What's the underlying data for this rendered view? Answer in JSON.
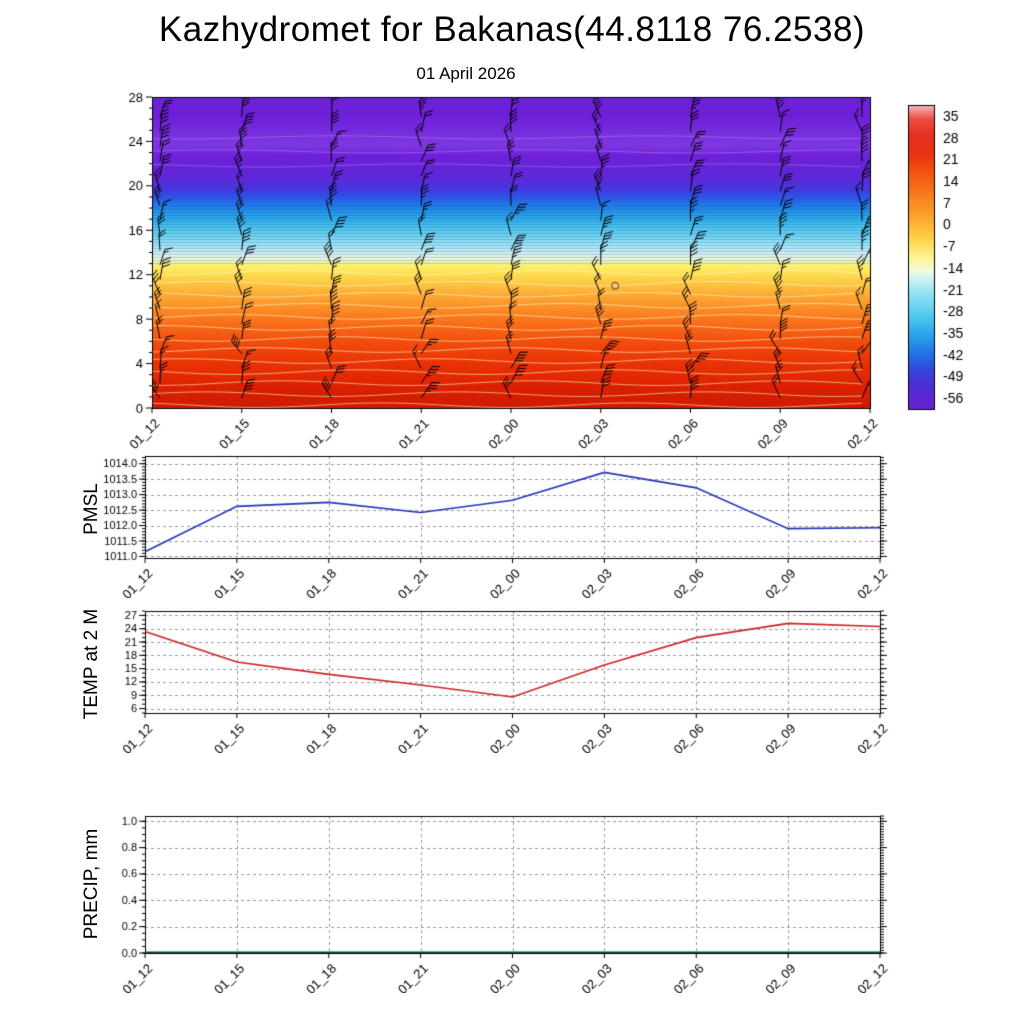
{
  "title": "Kazhydromet for Bakanas(44.8118 76.2538)",
  "subtitle": "01 April 2026",
  "x_ticklabels": [
    "01_12",
    "01_15",
    "01_18",
    "01_21",
    "02_00",
    "02_03",
    "02_06",
    "02_09",
    "02_12"
  ],
  "chart_data": [
    {
      "type": "heatmap",
      "title": "01 April 2026",
      "description": "Vertical temperature cross-section (height vs time) with wind barbs",
      "ylim": [
        0,
        28
      ],
      "yticks": [
        0,
        4,
        8,
        12,
        16,
        20,
        24,
        28
      ],
      "x_ticklabels": [
        "01_12",
        "01_15",
        "01_18",
        "01_21",
        "02_00",
        "02_03",
        "02_06",
        "02_09",
        "02_12"
      ],
      "colorbar_ticks": [
        35,
        28,
        21,
        14,
        7,
        0,
        -7,
        -14,
        -21,
        -28,
        -35,
        -42,
        -49,
        -56
      ],
      "gradient_stops": [
        [
          0.0,
          "#6e20d8"
        ],
        [
          0.06,
          "#6e20d8"
        ],
        [
          0.155,
          "#7e38e2"
        ],
        [
          0.19,
          "#6e20d8"
        ],
        [
          0.27,
          "#5c2ad8"
        ],
        [
          0.3,
          "#433ae0"
        ],
        [
          0.325,
          "#2b57e6"
        ],
        [
          0.35,
          "#217ee8"
        ],
        [
          0.385,
          "#2aa8ea"
        ],
        [
          0.425,
          "#55ccef"
        ],
        [
          0.465,
          "#8fe2f4"
        ],
        [
          0.495,
          "#c6f0f9"
        ],
        [
          0.52,
          "#f0fade"
        ],
        [
          0.545,
          "#fdef66"
        ],
        [
          0.58,
          "#fdd64c"
        ],
        [
          0.625,
          "#fdb23a"
        ],
        [
          0.675,
          "#fc9128"
        ],
        [
          0.725,
          "#f9701b"
        ],
        [
          0.785,
          "#f24e0e"
        ],
        [
          0.855,
          "#e93306"
        ],
        [
          0.93,
          "#dc2102"
        ],
        [
          1.0,
          "#ce1a02"
        ]
      ],
      "colorbar_stops": [
        [
          0.0,
          "#f6bcc6"
        ],
        [
          0.045,
          "#ef4f45"
        ],
        [
          0.1,
          "#e52f20"
        ],
        [
          0.16,
          "#e83212"
        ],
        [
          0.22,
          "#f2540f"
        ],
        [
          0.3,
          "#f97e1e"
        ],
        [
          0.37,
          "#fca52c"
        ],
        [
          0.44,
          "#fdd348"
        ],
        [
          0.5,
          "#fcf392"
        ],
        [
          0.545,
          "#f5fbd8"
        ],
        [
          0.575,
          "#c9f1f8"
        ],
        [
          0.63,
          "#86e0f4"
        ],
        [
          0.7,
          "#4cc6ee"
        ],
        [
          0.76,
          "#28a2e9"
        ],
        [
          0.82,
          "#2272e5"
        ],
        [
          0.87,
          "#3347dd"
        ],
        [
          0.92,
          "#4c2ed6"
        ],
        [
          1.0,
          "#6a22d2"
        ]
      ],
      "wind_barbs": {
        "columns": 9,
        "levels": 20
      }
    },
    {
      "type": "line",
      "ylabel": "PMSL",
      "color": "#2233bb",
      "x_ticklabels": [
        "01_12",
        "01_15",
        "01_18",
        "01_21",
        "02_00",
        "02_03",
        "02_06",
        "02_09",
        "02_12"
      ],
      "values": [
        1011.15,
        1012.62,
        1012.75,
        1012.42,
        1012.82,
        1013.72,
        1013.22,
        1011.9,
        1011.93
      ],
      "ylim": [
        1011.0,
        1014.0
      ],
      "frame": [
        1010.95,
        1014.25
      ],
      "yticks": [
        1011.0,
        1011.5,
        1012.0,
        1012.5,
        1013.0,
        1013.5,
        1014.0
      ],
      "minor_step": 0.1,
      "ytick_decimals": 1
    },
    {
      "type": "line",
      "ylabel": "TEMP at 2 M",
      "color": "#cc2222",
      "x_ticklabels": [
        "01_12",
        "01_15",
        "01_18",
        "01_21",
        "02_00",
        "02_03",
        "02_06",
        "02_09",
        "02_12"
      ],
      "values": [
        23.4,
        16.5,
        13.7,
        11.3,
        8.6,
        15.8,
        22.0,
        25.2,
        24.5
      ],
      "ylim": [
        6,
        27
      ],
      "frame": [
        5.0,
        28.0
      ],
      "yticks": [
        6,
        9,
        12,
        15,
        18,
        21,
        24,
        27
      ],
      "minor_step": 1,
      "ytick_decimals": 0
    },
    {
      "type": "line",
      "ylabel": "PRECIP, mm",
      "color": "#005522",
      "x_ticklabels": [
        "01_12",
        "01_15",
        "01_18",
        "01_21",
        "02_00",
        "02_03",
        "02_06",
        "02_09",
        "02_12"
      ],
      "values": [
        0,
        0,
        0,
        0,
        0,
        0,
        0,
        0,
        0
      ],
      "ylim": [
        0.0,
        1.0
      ],
      "frame": [
        0.0,
        1.04
      ],
      "yticks": [
        0.0,
        0.2,
        0.4,
        0.6,
        0.8,
        1.0
      ],
      "minor_step": 0.05,
      "right_minor": 0.02,
      "ytick_decimals": 1
    }
  ]
}
